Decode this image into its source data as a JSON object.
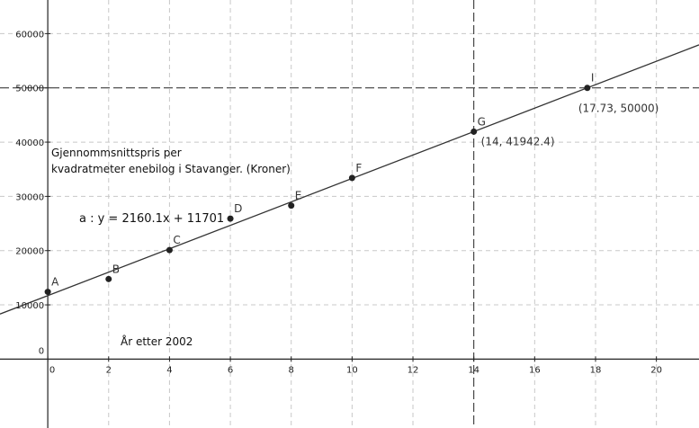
{
  "chart_data": {
    "type": "scatter",
    "xlim": [
      -1.57,
      21.4
    ],
    "ylim": [
      -12700,
      66200
    ],
    "grid": true,
    "x_ticks": [
      0,
      2,
      4,
      6,
      8,
      10,
      12,
      14,
      16,
      18,
      20
    ],
    "x_tick_labels": [
      "0",
      "2",
      "4",
      "6",
      "8",
      "10",
      "12",
      "14",
      "16",
      "18",
      "20"
    ],
    "y_ticks": [
      0,
      10000,
      20000,
      30000,
      40000,
      50000,
      60000
    ],
    "y_tick_labels": [
      "0",
      "10000",
      "20000",
      "30000",
      "40000",
      "50000",
      "60000"
    ],
    "points": [
      {
        "name": "A",
        "x": 0,
        "y": 12400
      },
      {
        "name": "B",
        "x": 2,
        "y": 14760
      },
      {
        "name": "C",
        "x": 4,
        "y": 20100
      },
      {
        "name": "D",
        "x": 6,
        "y": 25900
      },
      {
        "name": "E",
        "x": 8,
        "y": 28300
      },
      {
        "name": "F",
        "x": 10,
        "y": 33400
      },
      {
        "name": "G",
        "x": 14,
        "y": 41942.4,
        "coord_label": "(14, 41942.4)"
      },
      {
        "name": "I",
        "x": 17.73,
        "y": 50000,
        "coord_label": "(17.73, 50000)"
      }
    ],
    "regression_line": {
      "slope": 2160.1,
      "intercept": 11701,
      "label": "a :  y = 2160.1x + 11701"
    },
    "reference_lines": [
      {
        "type": "vertical",
        "x": 14
      },
      {
        "type": "horizontal",
        "y": 50000
      }
    ],
    "annotations": {
      "title_line1": "Gjennommsnittspris per",
      "title_line2": "kvadratmeter enebilog i Stavanger. (Kroner)",
      "xlabel": "År etter 2002"
    },
    "colors": {
      "points": "#222222",
      "line": "#333333",
      "grid": "#c8c8c8"
    }
  }
}
